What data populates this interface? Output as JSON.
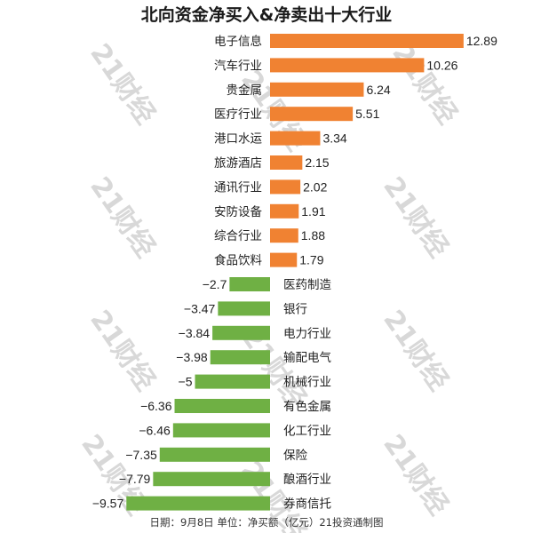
{
  "watermark": "21财经",
  "footer": "日期：9月8日 单位：净买额（亿元）21投资通制图",
  "colors": {
    "positive": "#f08232",
    "negative": "#6fb044",
    "text": "#222222",
    "watermark": "#d8d8d8"
  },
  "chart_data": {
    "type": "bar",
    "orientation": "horizontal",
    "title": "北向资金净买入&净卖出十大行业",
    "xlim": [
      -9.57,
      12.89
    ],
    "grid": false,
    "legend": "none",
    "categories": [
      "电子信息",
      "汽车行业",
      "贵金属",
      "医疗行业",
      "港口水运",
      "旅游酒店",
      "通讯行业",
      "安防设备",
      "综合行业",
      "食品饮料",
      "医药制造",
      "银行",
      "电力行业",
      "输配电气",
      "机械行业",
      "有色金属",
      "化工行业",
      "保险",
      "酿酒行业",
      "券商信托"
    ],
    "values": [
      12.89,
      10.26,
      6.24,
      5.51,
      3.34,
      2.15,
      2.02,
      1.91,
      1.88,
      1.79,
      -2.7,
      -3.47,
      -3.84,
      -3.98,
      -5,
      -6.36,
      -6.46,
      -7.35,
      -7.79,
      -9.57
    ],
    "value_labels": [
      "12.89",
      "10.26",
      "6.24",
      "5.51",
      "3.34",
      "2.15",
      "2.02",
      "1.91",
      "1.88",
      "1.79",
      "−2.7",
      "−3.47",
      "−3.84",
      "−3.98",
      "−5",
      "−6.36",
      "−6.46",
      "−7.35",
      "−7.79",
      "−9.57"
    ]
  }
}
